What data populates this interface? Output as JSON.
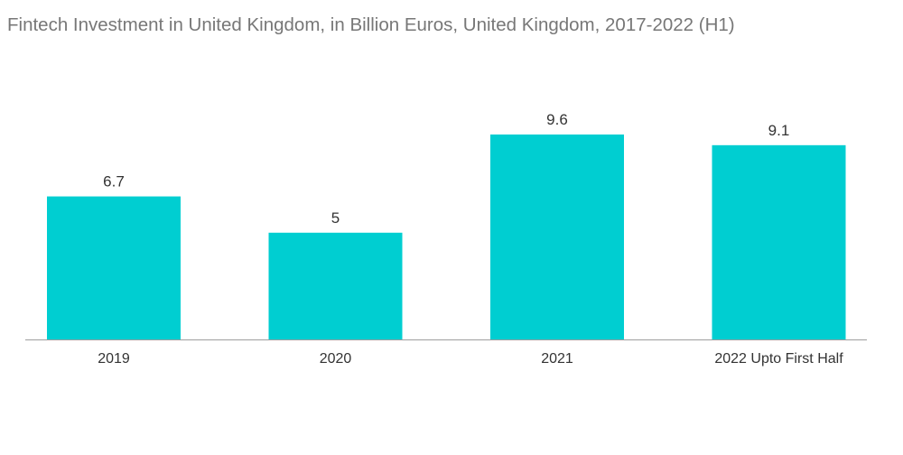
{
  "chart_data": {
    "type": "bar",
    "title": "Fintech Investment in United Kingdom, in Billion Euros, United Kingdom, 2017-2022 (H1)",
    "categories": [
      "2019",
      "2020",
      "2021",
      "2022 Upto First Half"
    ],
    "values": [
      6.7,
      5,
      9.6,
      9.1
    ],
    "data_labels": [
      "6.7",
      "5",
      "9.6",
      "9.1"
    ],
    "xlabel": "",
    "ylabel": "",
    "ylim": [
      0,
      9.6
    ],
    "grid": false,
    "legend": "none",
    "colors": {
      "bar": "#00CED1",
      "axis": "#9E9E9E",
      "title": "#777777",
      "label": "#333333"
    }
  }
}
